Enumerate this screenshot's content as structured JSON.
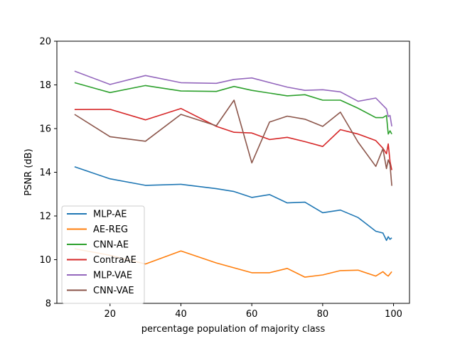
{
  "chart_data": {
    "type": "line",
    "xlabel": "percentage population of majority class",
    "ylabel": "PSNR (dB)",
    "xlim": [
      5,
      104.5
    ],
    "ylim": [
      8,
      20
    ],
    "x_ticks": [
      20,
      40,
      60,
      80,
      100
    ],
    "y_ticks": [
      8,
      10,
      12,
      14,
      16,
      18,
      20
    ],
    "grid": false,
    "legend_position": "lower left",
    "series": [
      {
        "name": "MLP-AE",
        "color": "#1f77b4",
        "x": [
          10,
          20,
          30,
          40,
          50,
          55,
          60,
          65,
          70,
          75,
          80,
          85,
          90,
          95,
          97,
          98,
          98.5,
          99,
          99.5
        ],
        "y": [
          14.25,
          13.7,
          13.4,
          13.45,
          13.25,
          13.12,
          12.85,
          12.98,
          12.6,
          12.63,
          12.15,
          12.27,
          11.93,
          11.3,
          11.22,
          10.88,
          11.05,
          10.93,
          11.0
        ]
      },
      {
        "name": "AE-REG",
        "color": "#ff7f0e",
        "x": [
          10,
          20,
          30,
          40,
          50,
          60,
          65,
          70,
          75,
          80,
          85,
          90,
          95,
          97,
          98,
          98.5,
          99,
          99.5
        ],
        "y": [
          10.5,
          10.2,
          9.8,
          10.4,
          9.85,
          9.4,
          9.4,
          9.6,
          9.2,
          9.3,
          9.5,
          9.52,
          9.25,
          9.45,
          9.3,
          9.25,
          9.35,
          9.45
        ]
      },
      {
        "name": "CNN-AE",
        "color": "#2ca02c",
        "x": [
          10,
          20,
          30,
          40,
          50,
          55,
          60,
          70,
          75,
          80,
          85,
          90,
          95,
          97,
          98,
          98.5,
          99,
          99.5
        ],
        "y": [
          18.1,
          17.65,
          17.97,
          17.72,
          17.7,
          17.93,
          17.75,
          17.5,
          17.55,
          17.3,
          17.3,
          16.93,
          16.5,
          16.5,
          16.6,
          15.75,
          15.9,
          15.75
        ]
      },
      {
        "name": "ContraAE",
        "color": "#d62728",
        "x": [
          10,
          20,
          30,
          40,
          50,
          55,
          60,
          65,
          70,
          75,
          80,
          85,
          90,
          95,
          97,
          98,
          98.5,
          99,
          99.5
        ],
        "y": [
          16.87,
          16.88,
          16.4,
          16.92,
          16.1,
          15.83,
          15.8,
          15.5,
          15.6,
          15.4,
          15.18,
          15.95,
          15.75,
          15.45,
          15.1,
          14.85,
          15.3,
          14.5,
          14.1
        ]
      },
      {
        "name": "MLP-VAE",
        "color": "#9467bd",
        "x": [
          10,
          20,
          30,
          40,
          50,
          55,
          60,
          70,
          75,
          80,
          85,
          90,
          95,
          98,
          98.5,
          99,
          99.5
        ],
        "y": [
          18.63,
          18.02,
          18.43,
          18.1,
          18.07,
          18.25,
          18.32,
          17.9,
          17.75,
          17.78,
          17.68,
          17.25,
          17.4,
          16.9,
          16.55,
          16.6,
          16.1
        ]
      },
      {
        "name": "CNN-VAE",
        "color": "#8c564b",
        "x": [
          10,
          20,
          30,
          40,
          50,
          55,
          60,
          65,
          70,
          75,
          80,
          85,
          90,
          95,
          97,
          98,
          98.5,
          99,
          99.5
        ],
        "y": [
          16.65,
          15.63,
          15.42,
          16.65,
          16.13,
          17.3,
          14.43,
          16.3,
          16.57,
          16.43,
          16.1,
          16.75,
          15.38,
          14.27,
          15.08,
          14.17,
          14.57,
          14.35,
          13.38
        ]
      }
    ]
  }
}
